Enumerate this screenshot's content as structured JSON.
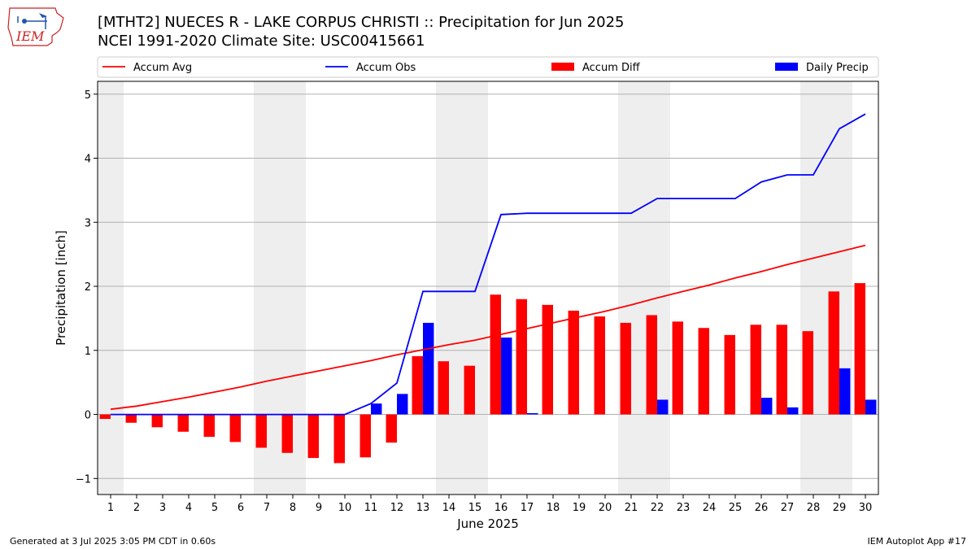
{
  "header": {
    "title_line1": "[MTHT2] NUECES R - LAKE CORPUS CHRISTI :: Precipitation for Jun 2025",
    "title_line2": "NCEI 1991-2020 Climate Site: USC00415661",
    "logo_text": "IEM"
  },
  "footer": {
    "generated": "Generated at 3 Jul 2025 3:05 PM CDT in 0.60s",
    "app": "IEM Autoplot App #17"
  },
  "colors": {
    "accum_avg": "#ff0000",
    "accum_obs": "#0000ff",
    "accum_diff": "#ff0000",
    "daily_precip": "#0000ff",
    "weekend_shade": "#eeeeee",
    "grid": "#b0b0b0"
  },
  "chart_data": {
    "type": "bar",
    "xlabel": "June 2025",
    "ylabel": "Precipitation [inch]",
    "ylim": [
      -1.25,
      5.2
    ],
    "yticks": [
      -1,
      0,
      1,
      2,
      3,
      4,
      5
    ],
    "ytick_labels": [
      "−1",
      "0",
      "1",
      "2",
      "3",
      "4",
      "5"
    ],
    "grid": "horizontal",
    "legend_position": "top",
    "x": [
      1,
      2,
      3,
      4,
      5,
      6,
      7,
      8,
      9,
      10,
      11,
      12,
      13,
      14,
      15,
      16,
      17,
      18,
      19,
      20,
      21,
      22,
      23,
      24,
      25,
      26,
      27,
      28,
      29,
      30
    ],
    "shaded_days": [
      1,
      7,
      8,
      14,
      15,
      21,
      22,
      28,
      29
    ],
    "series": [
      {
        "name": "Accum Avg",
        "kind": "line",
        "values": [
          0.08,
          0.13,
          0.2,
          0.27,
          0.35,
          0.43,
          0.52,
          0.6,
          0.68,
          0.76,
          0.84,
          0.93,
          1.01,
          1.09,
          1.16,
          1.25,
          1.34,
          1.43,
          1.52,
          1.61,
          1.71,
          1.82,
          1.92,
          2.02,
          2.13,
          2.23,
          2.34,
          2.44,
          2.54,
          2.64
        ]
      },
      {
        "name": "Accum Obs",
        "kind": "line",
        "values": [
          0,
          0,
          0,
          0,
          0,
          0,
          0,
          0,
          0,
          0,
          0.17,
          0.49,
          1.92,
          1.92,
          1.92,
          3.12,
          3.14,
          3.14,
          3.14,
          3.14,
          3.14,
          3.37,
          3.37,
          3.37,
          3.37,
          3.63,
          3.74,
          3.74,
          4.46,
          4.69
        ]
      },
      {
        "name": "Accum Diff",
        "kind": "bar",
        "values": [
          -0.07,
          -0.13,
          -0.2,
          -0.27,
          -0.35,
          -0.43,
          -0.52,
          -0.6,
          -0.68,
          -0.76,
          -0.67,
          -0.44,
          0.91,
          0.83,
          0.76,
          1.87,
          1.8,
          1.71,
          1.62,
          1.53,
          1.43,
          1.55,
          1.45,
          1.35,
          1.24,
          1.4,
          1.4,
          1.3,
          1.92,
          2.05
        ]
      },
      {
        "name": "Daily Precip",
        "kind": "bar",
        "values": [
          0,
          0,
          0,
          0,
          0,
          0,
          0,
          0,
          0,
          0,
          0.17,
          0.32,
          1.43,
          0,
          0,
          1.2,
          0.02,
          0,
          0,
          0,
          0,
          0.23,
          0,
          0,
          0,
          0.26,
          0.11,
          0,
          0.72,
          0.23
        ]
      }
    ]
  }
}
